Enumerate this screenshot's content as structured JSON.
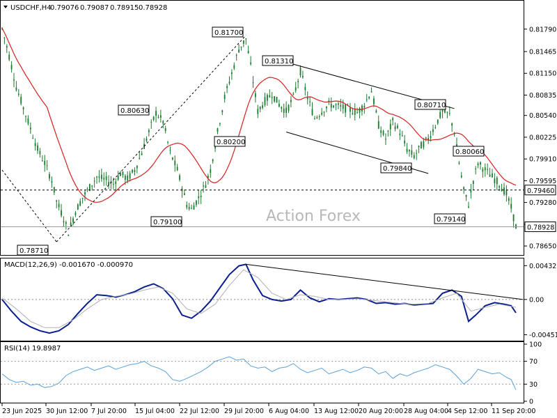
{
  "header": {
    "symbol": "USDCHF,H4",
    "open": "0.79076",
    "high": "0.79087",
    "low": "0.78915",
    "close": "0.78928",
    "dropdown_icon": "triangle-down-icon"
  },
  "watermark": "Action Forex",
  "colors": {
    "candle": "#1a7a2e",
    "ma": "#d62020",
    "macd": "#0a1f8f",
    "signal": "#b0b0b0",
    "rsi": "#5aa0d8",
    "trendline": "#000000",
    "panel_border": "#000000"
  },
  "chart_data": [
    {
      "type": "candlestick",
      "title": "USDCHF,H4",
      "y_ticks": [
        "0.81790",
        "0.81465",
        "0.81150",
        "0.80835",
        "0.80540",
        "0.80225",
        "0.79910",
        "0.79595",
        "0.79280",
        "0.78965",
        "0.78650"
      ],
      "x_ticks": [
        "23 Jun 2025",
        "30 Jun 12:00",
        "7 Jul 20:00",
        "15 Jul 04:00",
        "22 Jul 12:00",
        "29 Jul 20:00",
        "6 Aug 04:00",
        "13 Aug 12:00",
        "20 Aug 20:00",
        "28 Aug 04:00",
        "4 Sep 12:00",
        "11 Sep 20:00"
      ],
      "ylim": [
        0.7858,
        0.8201
      ],
      "annotations": [
        {
          "label": "0.81700",
          "value": 0.817
        },
        {
          "label": "0.81310",
          "value": 0.8131
        },
        {
          "label": "0.80630",
          "value": 0.8063
        },
        {
          "label": "0.80710",
          "value": 0.8071
        },
        {
          "label": "0.80200",
          "value": 0.802
        },
        {
          "label": "0.80060",
          "value": 0.8006
        },
        {
          "label": "0.79840",
          "value": 0.7984
        },
        {
          "label": "0.79100",
          "value": 0.791
        },
        {
          "label": "0.79140",
          "value": 0.7914
        },
        {
          "label": "0.78710",
          "value": 0.7871
        }
      ],
      "horizontal_line": {
        "label": "0.79460",
        "value": 0.7946
      },
      "current_price": {
        "label": "0.78928",
        "value": 0.78928
      },
      "price_path": [
        [
          0,
          0.818
        ],
        [
          3,
          0.814
        ],
        [
          6,
          0.8095
        ],
        [
          9,
          0.8065
        ],
        [
          12,
          0.8035
        ],
        [
          15,
          0.8005
        ],
        [
          18,
          0.7985
        ],
        [
          21,
          0.796
        ],
        [
          23,
          0.793
        ],
        [
          26,
          0.7905
        ],
        [
          28,
          0.7885
        ],
        [
          31,
          0.7915
        ],
        [
          34,
          0.7935
        ],
        [
          37,
          0.795
        ],
        [
          40,
          0.7965
        ],
        [
          44,
          0.796
        ],
        [
          47,
          0.7955
        ],
        [
          50,
          0.797
        ],
        [
          53,
          0.7962
        ],
        [
          56,
          0.7975
        ],
        [
          59,
          0.8
        ],
        [
          62,
          0.803
        ],
        [
          65,
          0.8058
        ],
        [
          68,
          0.8045
        ],
        [
          71,
          0.8
        ],
        [
          74,
          0.7975
        ],
        [
          76,
          0.795
        ],
        [
          78,
          0.7925
        ],
        [
          80,
          0.7918
        ],
        [
          83,
          0.7935
        ],
        [
          86,
          0.7955
        ],
        [
          88,
          0.7975
        ],
        [
          91,
          0.803
        ],
        [
          94,
          0.808
        ],
        [
          97,
          0.8115
        ],
        [
          100,
          0.815
        ],
        [
          103,
          0.8165
        ],
        [
          105,
          0.8125
        ],
        [
          108,
          0.806
        ],
        [
          111,
          0.8075
        ],
        [
          114,
          0.8085
        ],
        [
          117,
          0.807
        ],
        [
          120,
          0.806
        ],
        [
          123,
          0.808
        ],
        [
          126,
          0.8118
        ],
        [
          129,
          0.808
        ],
        [
          132,
          0.805
        ],
        [
          135,
          0.806
        ],
        [
          138,
          0.807
        ],
        [
          141,
          0.8068
        ],
        [
          144,
          0.8065
        ],
        [
          147,
          0.8062
        ],
        [
          150,
          0.8058
        ],
        [
          153,
          0.807
        ],
        [
          156,
          0.809
        ],
        [
          159,
          0.804
        ],
        [
          162,
          0.802
        ],
        [
          165,
          0.8045
        ],
        [
          168,
          0.803
        ],
        [
          171,
          0.8005
        ],
        [
          174,
          0.7995
        ],
        [
          177,
          0.801
        ],
        [
          180,
          0.802
        ],
        [
          183,
          0.804
        ],
        [
          186,
          0.806
        ],
        [
          189,
          0.8055
        ],
        [
          191,
          0.803
        ],
        [
          193,
          0.7985
        ],
        [
          195,
          0.7945
        ],
        [
          197,
          0.7925
        ],
        [
          199,
          0.796
        ],
        [
          201,
          0.7985
        ],
        [
          204,
          0.7975
        ],
        [
          207,
          0.7965
        ],
        [
          210,
          0.7955
        ],
        [
          213,
          0.794
        ],
        [
          215,
          0.792
        ],
        [
          217,
          0.7893
        ]
      ],
      "trendlines": [
        {
          "from": [
            0,
            0.7975
          ],
          "to": [
            23,
            0.7871
          ]
        },
        {
          "from": [
            23,
            0.7871
          ],
          "to": [
            103,
            0.817
          ]
        },
        {
          "from": [
            120,
            0.8131
          ],
          "to": [
            191,
            0.8064
          ]
        },
        {
          "from": [
            120,
            0.803
          ],
          "to": [
            180,
            0.797
          ]
        }
      ]
    },
    {
      "type": "line",
      "title": "MACD(12,26,9) -0.001670 -0.000970",
      "y_ticks": [
        "0.004325",
        "0.00",
        "-0.004511"
      ],
      "ylim": [
        -0.005,
        0.0048
      ],
      "series": [
        {
          "name": "MACD",
          "values": [
            [
              0,
              0.0
            ],
            [
              4,
              -0.0015
            ],
            [
              8,
              -0.0028
            ],
            [
              12,
              -0.0035
            ],
            [
              16,
              -0.004
            ],
            [
              20,
              -0.0043
            ],
            [
              24,
              -0.004
            ],
            [
              28,
              -0.0032
            ],
            [
              32,
              -0.0018
            ],
            [
              36,
              -0.0005
            ],
            [
              40,
              0.0006
            ],
            [
              44,
              0.0005
            ],
            [
              48,
              0.0003
            ],
            [
              52,
              0.0006
            ],
            [
              56,
              0.001
            ],
            [
              60,
              0.0016
            ],
            [
              64,
              0.002
            ],
            [
              68,
              0.0014
            ],
            [
              72,
              0.0001
            ],
            [
              76,
              -0.002
            ],
            [
              80,
              -0.0024
            ],
            [
              84,
              -0.0015
            ],
            [
              88,
              -0.0002
            ],
            [
              92,
              0.0015
            ],
            [
              96,
              0.0032
            ],
            [
              100,
              0.0043
            ],
            [
              103,
              0.0045
            ],
            [
              106,
              0.0025
            ],
            [
              110,
              0.0005
            ],
            [
              114,
              0.0
            ],
            [
              118,
              -0.0002
            ],
            [
              122,
              0.0
            ],
            [
              126,
              0.0012
            ],
            [
              130,
              0.0002
            ],
            [
              134,
              -0.0003
            ],
            [
              138,
              0.0001
            ],
            [
              142,
              0.0
            ],
            [
              146,
              0.0001
            ],
            [
              150,
              0.0002
            ],
            [
              154,
              0.0
            ],
            [
              158,
              -0.0005
            ],
            [
              162,
              -0.0004
            ],
            [
              166,
              -0.0006
            ],
            [
              170,
              -0.0005
            ],
            [
              174,
              -0.0007
            ],
            [
              178,
              -0.0006
            ],
            [
              182,
              -0.0005
            ],
            [
              186,
              0.0008
            ],
            [
              190,
              0.0012
            ],
            [
              194,
              0.0004
            ],
            [
              197,
              -0.0028
            ],
            [
              200,
              -0.002
            ],
            [
              204,
              -0.0008
            ],
            [
              208,
              -0.0004
            ],
            [
              212,
              -0.0006
            ],
            [
              215,
              -0.0008
            ],
            [
              217,
              -0.0017
            ]
          ]
        },
        {
          "name": "Signal",
          "values": [
            [
              0,
              0.0002
            ],
            [
              6,
              -0.0012
            ],
            [
              12,
              -0.0028
            ],
            [
              18,
              -0.0036
            ],
            [
              24,
              -0.0036
            ],
            [
              30,
              -0.0026
            ],
            [
              36,
              -0.0012
            ],
            [
              42,
              0.0
            ],
            [
              48,
              0.0004
            ],
            [
              54,
              0.0007
            ],
            [
              60,
              0.0012
            ],
            [
              66,
              0.0016
            ],
            [
              72,
              0.0008
            ],
            [
              78,
              -0.0012
            ],
            [
              84,
              -0.0018
            ],
            [
              90,
              -0.0006
            ],
            [
              96,
              0.0018
            ],
            [
              102,
              0.0038
            ],
            [
              108,
              0.0028
            ],
            [
              114,
              0.0008
            ],
            [
              120,
              0.0
            ],
            [
              126,
              0.0006
            ],
            [
              132,
              0.0004
            ],
            [
              138,
              0.0
            ],
            [
              144,
              0.0
            ],
            [
              150,
              0.0001
            ],
            [
              156,
              -0.0001
            ],
            [
              162,
              -0.0003
            ],
            [
              168,
              -0.0005
            ],
            [
              174,
              -0.0006
            ],
            [
              180,
              -0.0005
            ],
            [
              186,
              0.0002
            ],
            [
              192,
              0.0008
            ],
            [
              198,
              -0.0015
            ],
            [
              204,
              -0.001
            ],
            [
              210,
              -0.0006
            ],
            [
              217,
              -0.001
            ]
          ]
        }
      ],
      "trendlines": [
        {
          "from": [
            103,
            0.0045
          ],
          "to": [
            217,
            0.0
          ]
        }
      ]
    },
    {
      "type": "line",
      "title": "RSI(14) 19.8987",
      "y_ticks": [
        "100",
        "70",
        "30",
        "0"
      ],
      "ylim": [
        0,
        100
      ],
      "series": [
        {
          "name": "RSI(14)",
          "values": [
            [
              0,
              48
            ],
            [
              3,
              38
            ],
            [
              6,
              33
            ],
            [
              9,
              35
            ],
            [
              12,
              28
            ],
            [
              15,
              30
            ],
            [
              18,
              24
            ],
            [
              21,
              26
            ],
            [
              24,
              32
            ],
            [
              27,
              45
            ],
            [
              30,
              52
            ],
            [
              33,
              56
            ],
            [
              36,
              60
            ],
            [
              39,
              54
            ],
            [
              42,
              58
            ],
            [
              45,
              62
            ],
            [
              48,
              56
            ],
            [
              51,
              60
            ],
            [
              54,
              64
            ],
            [
              57,
              66
            ],
            [
              60,
              70
            ],
            [
              63,
              62
            ],
            [
              66,
              58
            ],
            [
              69,
              52
            ],
            [
              72,
              38
            ],
            [
              75,
              35
            ],
            [
              78,
              40
            ],
            [
              81,
              46
            ],
            [
              84,
              52
            ],
            [
              87,
              60
            ],
            [
              90,
              70
            ],
            [
              93,
              74
            ],
            [
              96,
              78
            ],
            [
              99,
              72
            ],
            [
              102,
              74
            ],
            [
              105,
              62
            ],
            [
              108,
              58
            ],
            [
              111,
              60
            ],
            [
              114,
              52
            ],
            [
              117,
              58
            ],
            [
              120,
              60
            ],
            [
              123,
              66
            ],
            [
              126,
              56
            ],
            [
              129,
              50
            ],
            [
              132,
              54
            ],
            [
              135,
              58
            ],
            [
              138,
              48
            ],
            [
              141,
              52
            ],
            [
              144,
              56
            ],
            [
              147,
              50
            ],
            [
              150,
              54
            ],
            [
              153,
              60
            ],
            [
              156,
              58
            ],
            [
              159,
              48
            ],
            [
              162,
              52
            ],
            [
              165,
              40
            ],
            [
              168,
              48
            ],
            [
              171,
              44
            ],
            [
              174,
              50
            ],
            [
              177,
              54
            ],
            [
              180,
              58
            ],
            [
              183,
              64
            ],
            [
              186,
              60
            ],
            [
              189,
              56
            ],
            [
              192,
              44
            ],
            [
              195,
              30
            ],
            [
              198,
              40
            ],
            [
              201,
              56
            ],
            [
              204,
              52
            ],
            [
              207,
              48
            ],
            [
              210,
              50
            ],
            [
              213,
              42
            ],
            [
              215,
              38
            ],
            [
              217,
              20
            ]
          ]
        }
      ]
    }
  ]
}
